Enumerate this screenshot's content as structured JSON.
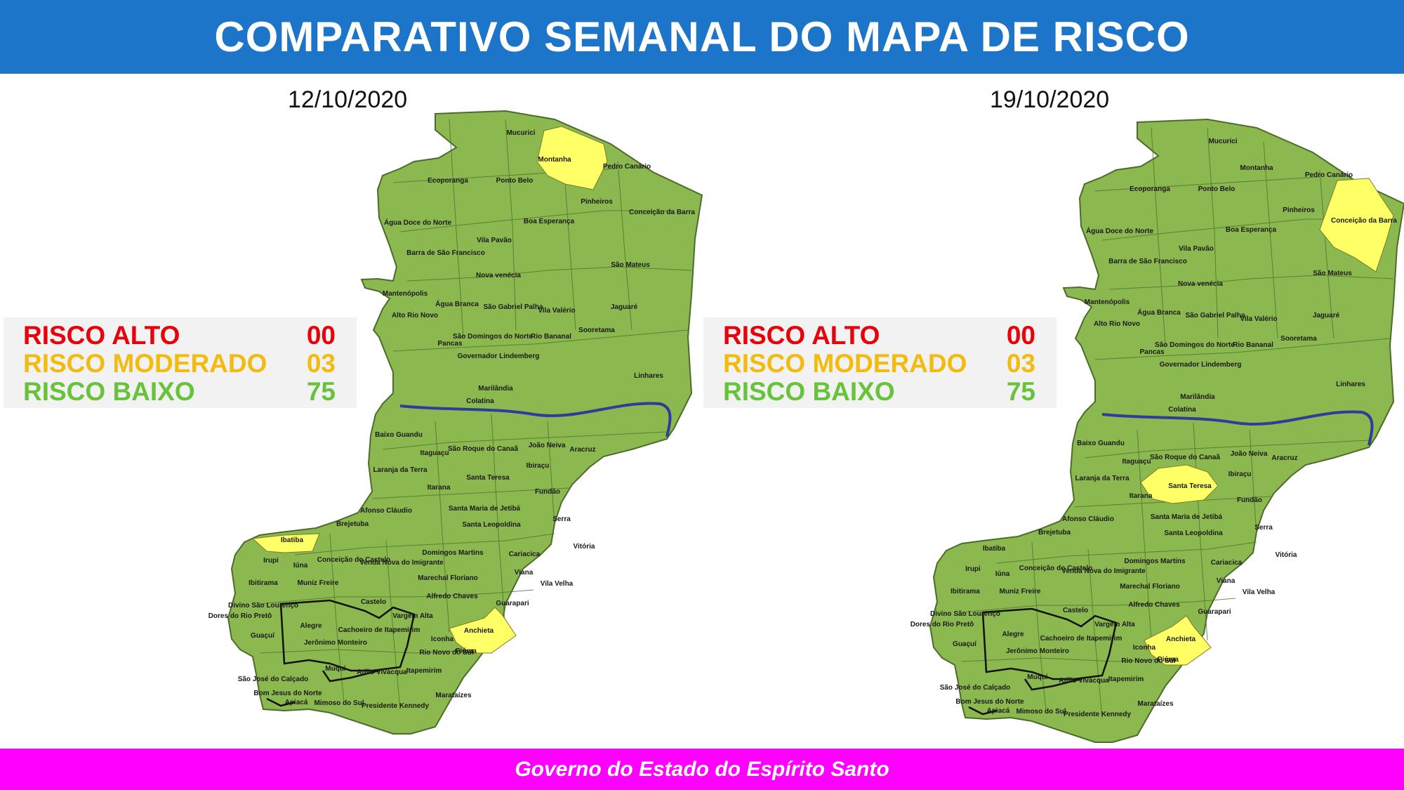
{
  "title": "COMPARATIVO SEMANAL DO MAPA DE RISCO",
  "footer": "Governo do Estado do Espírito Santo",
  "colors": {
    "header": "#1c75c8",
    "footer": "#ff00ff",
    "risk_high": "#e8000b",
    "risk_moderate": "#f3bb10",
    "risk_low": "#66c33a",
    "map_low": "#8bb84f",
    "map_moderate": "#ffff66",
    "river": "#2f3c9a"
  },
  "maps": [
    {
      "date": "12/10/2020",
      "legend": [
        {
          "label": "RISCO ALTO",
          "value": "00"
        },
        {
          "label": "RISCO MODERADO",
          "value": "03"
        },
        {
          "label": "RISCO BAIXO",
          "value": "75"
        }
      ],
      "moderate": [
        "Montanha",
        "Ibatiba",
        "Anchieta"
      ]
    },
    {
      "date": "19/10/2020",
      "legend": [
        {
          "label": "RISCO ALTO",
          "value": "00"
        },
        {
          "label": "RISCO MODERADO",
          "value": "03"
        },
        {
          "label": "RISCO BAIXO",
          "value": "75"
        }
      ],
      "moderate": [
        "Conceição da Barra",
        "Santa Teresa",
        "Anchieta"
      ]
    }
  ],
  "municipalities": [
    "Mucurici",
    "Montanha",
    "Pedro Canário",
    "Ecoporanga",
    "Ponto Belo",
    "Pinheiros",
    "Conceição da Barra",
    "Boa Esperança",
    "Água Doce do Norte",
    "Barra de São Francisco",
    "Vila Pavão",
    "São Mateus",
    "Nova venécia",
    "Mantenópolis",
    "Água Branca",
    "São Gabriel Palha",
    "Vila Valério",
    "Jaguaré",
    "Alto Rio Novo",
    "Sooretama",
    "Pancas",
    "São Domingos do Norte",
    "Governador Lindemberg",
    "Rio Bananal",
    "Linhares",
    "Marilândia",
    "Colatina",
    "Baixo Guandu",
    "São Roque do Canaã",
    "João Neiva",
    "Aracruz",
    "Itaguaçu",
    "Ibiraçu",
    "Laranja da Terra",
    "Itarana",
    "Santa Teresa",
    "Fundão",
    "Afonso Cláudio",
    "Santa Maria de Jetibá",
    "Serra",
    "Brejetuba",
    "Santa Leopoldina",
    "Vitória",
    "Ibatiba",
    "Domingos Martins",
    "Cariacica",
    "Irupi",
    "Iúna",
    "Conceição do Castelo",
    "Venda Nova do Imigrante",
    "Viana",
    "Marechal Floriano",
    "Vila Velha",
    "Ibitirama",
    "Muniz Freire",
    "Divino São Lourenço",
    "Alfredo Chaves",
    "Castelo",
    "Guarapari",
    "Dores do Rio Pretô",
    "Vargem Alta",
    "Alegre",
    "Cachoeiro de Itapemirim",
    "Anchieta",
    "Guaçuí",
    "Jerônimo Monteiro",
    "Iconha",
    "Rio Novo do Sul",
    "Piúma",
    "Muqui",
    "Atílio Vivácqua",
    "São José do Calçado",
    "Itapemirim",
    "Bom Jesus do Norte",
    "Apiacá",
    "Mimoso do Sul",
    "Marataízes",
    "Presidente Kennedy"
  ]
}
